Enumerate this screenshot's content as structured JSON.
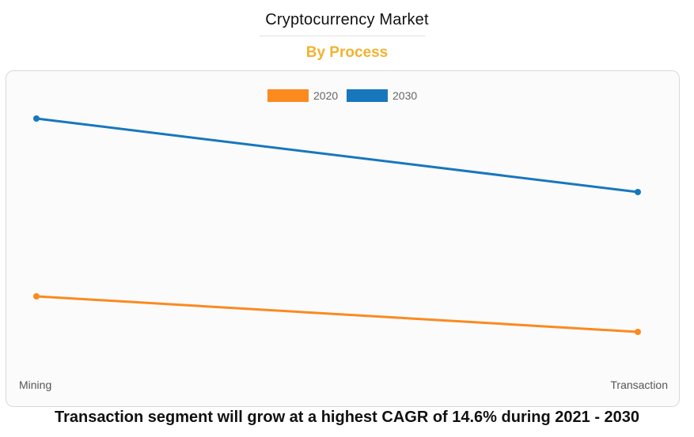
{
  "header": {
    "title": "Cryptocurrency Market",
    "subtitle": "By Process"
  },
  "footer": {
    "caption": "Transaction segment will grow at a highest CAGR of 14.6% during 2021 - 2030"
  },
  "colors": {
    "series_2020": "#fb8a1f",
    "series_2030": "#1777bd",
    "subtitle": "#f2b230"
  },
  "chart_data": {
    "type": "line",
    "title": "Cryptocurrency Market",
    "subtitle": "By Process",
    "categories": [
      "Mining",
      "Transaction"
    ],
    "series": [
      {
        "name": "2020",
        "values": [
          35,
          20
        ]
      },
      {
        "name": "2030",
        "values": [
          110,
          79
        ]
      }
    ],
    "ylim": [
      0,
      130
    ],
    "xlabel": "",
    "ylabel": "",
    "grid": false,
    "legend": "top-center"
  }
}
